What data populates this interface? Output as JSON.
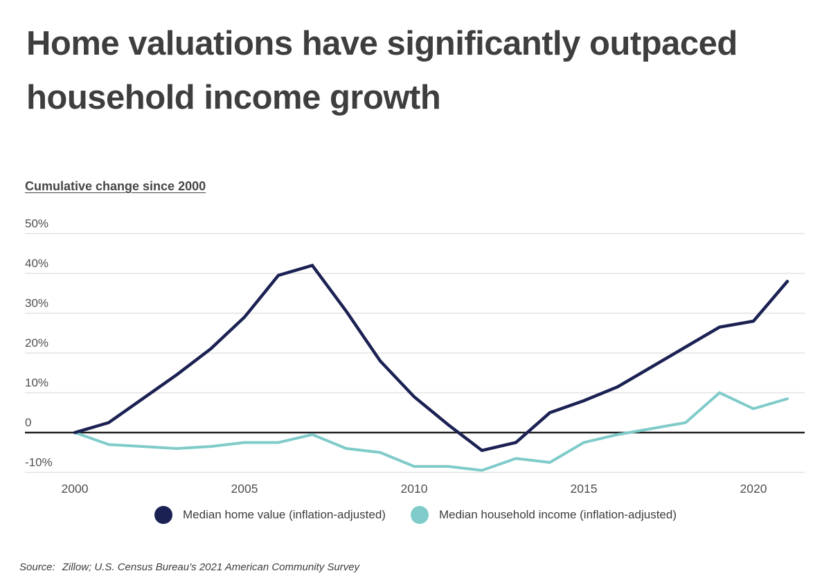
{
  "page": {
    "title_lines": [
      "Home valuations have significantly outpaced",
      "household income growth"
    ],
    "subtitle": "Cumulative change since 2000",
    "source_label": "Source:",
    "source_text": "Zillow; U.S. Census Bureau’s 2021 American Community Survey"
  },
  "legend": {
    "items": [
      {
        "label": "Median home value (inflation-adjusted)",
        "color": "#1b2153"
      },
      {
        "label": "Median household income (inflation-adjusted)",
        "color": "#7fcbca"
      }
    ]
  },
  "chart_data": {
    "type": "line",
    "title": "Home valuations have significantly outpaced household income growth",
    "subtitle": "Cumulative change since 2000",
    "xlabel": "",
    "ylabel": "Cumulative change since 2000 (%)",
    "x": [
      2000,
      2001,
      2002,
      2003,
      2004,
      2005,
      2006,
      2007,
      2008,
      2009,
      2010,
      2011,
      2012,
      2013,
      2014,
      2015,
      2016,
      2017,
      2018,
      2019,
      2020,
      2021
    ],
    "series": [
      {
        "name": "Median home value (inflation-adjusted)",
        "color": "#1b2153",
        "stroke_width": 4.5,
        "values": [
          0,
          2.5,
          8.5,
          14.5,
          21,
          29,
          39.5,
          42,
          30.5,
          18,
          9,
          2,
          -4.5,
          -2.5,
          5,
          8,
          11.5,
          16.5,
          21.5,
          26.5,
          28,
          38
        ]
      },
      {
        "name": "Median household income (inflation-adjusted)",
        "color": "#7fcbca",
        "stroke_width": 4,
        "values": [
          0,
          -3,
          -3.5,
          -4,
          -3.5,
          -2.5,
          -2.5,
          -0.5,
          -4,
          -5,
          -8.5,
          -8.5,
          -9.5,
          -6.5,
          -7.5,
          -2.5,
          -0.5,
          1,
          2.5,
          10,
          6,
          8.5
        ]
      }
    ],
    "y_ticks": [
      {
        "value": 50,
        "label": "50%"
      },
      {
        "value": 40,
        "label": "40%"
      },
      {
        "value": 30,
        "label": "30%"
      },
      {
        "value": 20,
        "label": "20%"
      },
      {
        "value": 10,
        "label": "10%"
      },
      {
        "value": 0,
        "label": "0"
      },
      {
        "value": -10,
        "label": "-10%"
      }
    ],
    "x_ticks": [
      {
        "value": 2000,
        "label": "2000"
      },
      {
        "value": 2005,
        "label": "2005"
      },
      {
        "value": 2010,
        "label": "2010"
      },
      {
        "value": 2015,
        "label": "2015"
      },
      {
        "value": 2020,
        "label": "2020"
      }
    ],
    "ylim": [
      -12,
      55
    ],
    "grid": "horizontal",
    "zero_line": true,
    "legend_position": "bottom",
    "colors": {
      "grid": "#e2e2e2",
      "zero_line": "#1f1f1f",
      "tick_text": "#4f4f4f",
      "background": "#ffffff"
    }
  }
}
